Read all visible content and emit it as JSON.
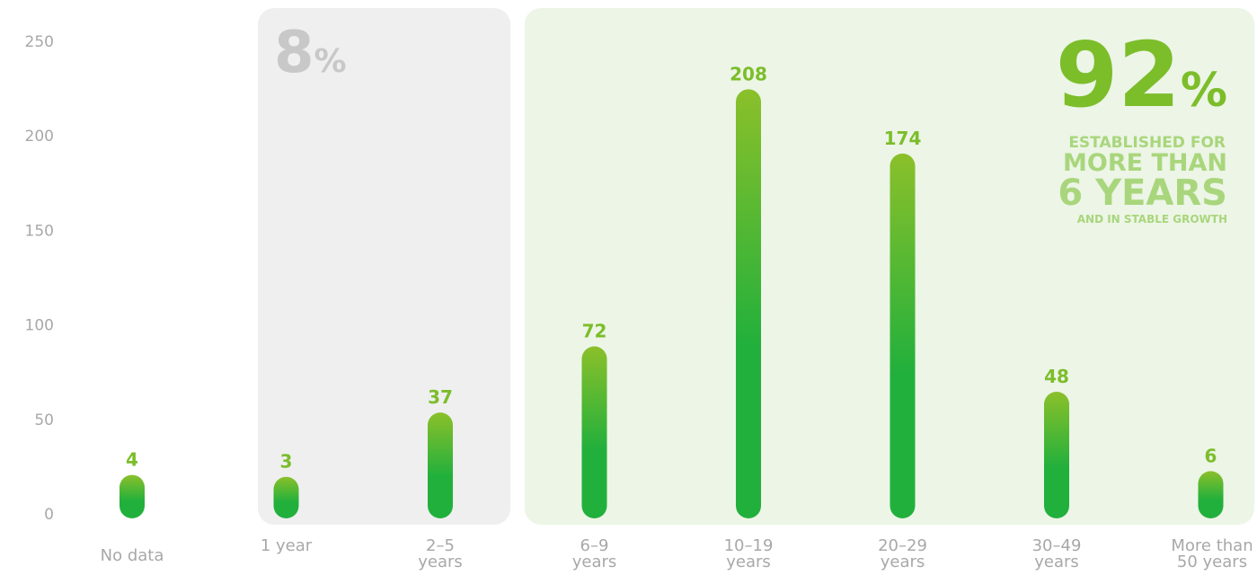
{
  "chart_data": {
    "type": "bar",
    "categories": [
      "No data",
      "1 year",
      "2–5 years",
      "6–9 years",
      "10–19 years",
      "20–29 years",
      "30–49 years",
      "More than 50 years"
    ],
    "values": [
      4,
      3,
      37,
      72,
      208,
      174,
      48,
      6
    ],
    "color": [
      "#8bc02a",
      "#22b03c"
    ],
    "ylim": [
      0,
      250
    ],
    "yticks": [
      0,
      50,
      100,
      150,
      200,
      250
    ],
    "grid": false,
    "annotations": {
      "left": {
        "number": "8",
        "unit": "%"
      },
      "right": {
        "number": "92",
        "unit": "%",
        "lines": [
          "ESTABLISHED FOR",
          "MORE THAN",
          "6 YEARS",
          "AND IN STABLE GROWTH"
        ]
      }
    }
  }
}
